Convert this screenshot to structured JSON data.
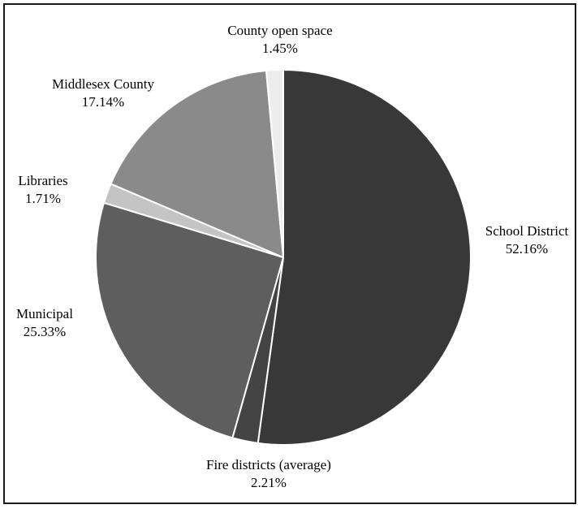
{
  "chart_data": {
    "type": "pie",
    "title": "",
    "legend": "none",
    "start_angle_deg": 0,
    "direction": "clockwise",
    "slices": [
      {
        "label": "School District",
        "value": 52.16,
        "value_label": "52.16%",
        "color": "#383838"
      },
      {
        "label": "Fire districts (average)",
        "value": 2.21,
        "value_label": "2.21%",
        "color": "#444444"
      },
      {
        "label": "Municipal",
        "value": 25.33,
        "value_label": "25.33%",
        "color": "#5e5e5e"
      },
      {
        "label": "Libraries",
        "value": 1.71,
        "value_label": "1.71%",
        "color": "#c4c4c4"
      },
      {
        "label": "Middlesex County",
        "value": 17.14,
        "value_label": "17.14%",
        "color": "#8a8a8a"
      },
      {
        "label": "County open space",
        "value": 1.45,
        "value_label": "1.45%",
        "color": "#ededed"
      }
    ]
  }
}
